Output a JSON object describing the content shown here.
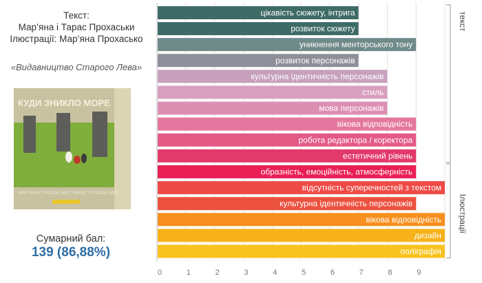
{
  "credits": {
    "line1": "Текст:",
    "line2": "Мар’яна і Тарас Прохаськи",
    "line3": "Ілюстрації: Мар’яна Прохасько"
  },
  "publisher": "«Видавництво Старого Лева»",
  "book_cover": {
    "title": "КУДИ ЗНИКЛО МОРЕ",
    "authors": "МАР’ЯНА ПРОХАСЬКО ТАРАС ПРОХАСЬКО"
  },
  "score": {
    "label": "Сумарний бал:",
    "value": "139 (86,88%)"
  },
  "colors": {
    "text_group": [
      "#3f6b67",
      "#3f6b67",
      "#6f8a88",
      "#8f8f99",
      "#c6a0bd",
      "#d99fbf",
      "#dd8fb2",
      "#e4779e",
      "#e45a87",
      "#e33a6c"
    ],
    "illustration_group": [
      "#ea1f56",
      "#ee4b46",
      "#ec523f",
      "#f7901e",
      "#f7b21a",
      "#f7c31e"
    ],
    "grid": "#e2e2e2",
    "axis": "#bbbbbb"
  },
  "chart_data": {
    "type": "bar",
    "orientation": "horizontal",
    "xlim": [
      0,
      10
    ],
    "xticks": [
      "0",
      "1",
      "2",
      "3",
      "4",
      "5",
      "6",
      "7",
      "8",
      "9"
    ],
    "categories": [
      "цікавість сюжету, інтрига",
      "розвиток сюжету",
      "уникнення менторського тону",
      "розвиток персонажів",
      "культурна ідентичність персонажів",
      "стиль",
      "мова персонажів",
      "вікова відповідність",
      "робота редактора / коректора",
      "естетичний рівень",
      "образність, емоційність, атмосферність",
      "відсутність суперечностей з текстом",
      "культурна ідентичність персонажів",
      "вікова відповідність",
      "дизайн",
      "поліграфія"
    ],
    "values": [
      7,
      7,
      9,
      7,
      8,
      8,
      8,
      9,
      9,
      9,
      9,
      10,
      9,
      10,
      10,
      10
    ],
    "groups": [
      {
        "label": "текст",
        "count": 10
      },
      {
        "label": "Ілюстрації",
        "count": 6
      }
    ],
    "grid": true
  }
}
